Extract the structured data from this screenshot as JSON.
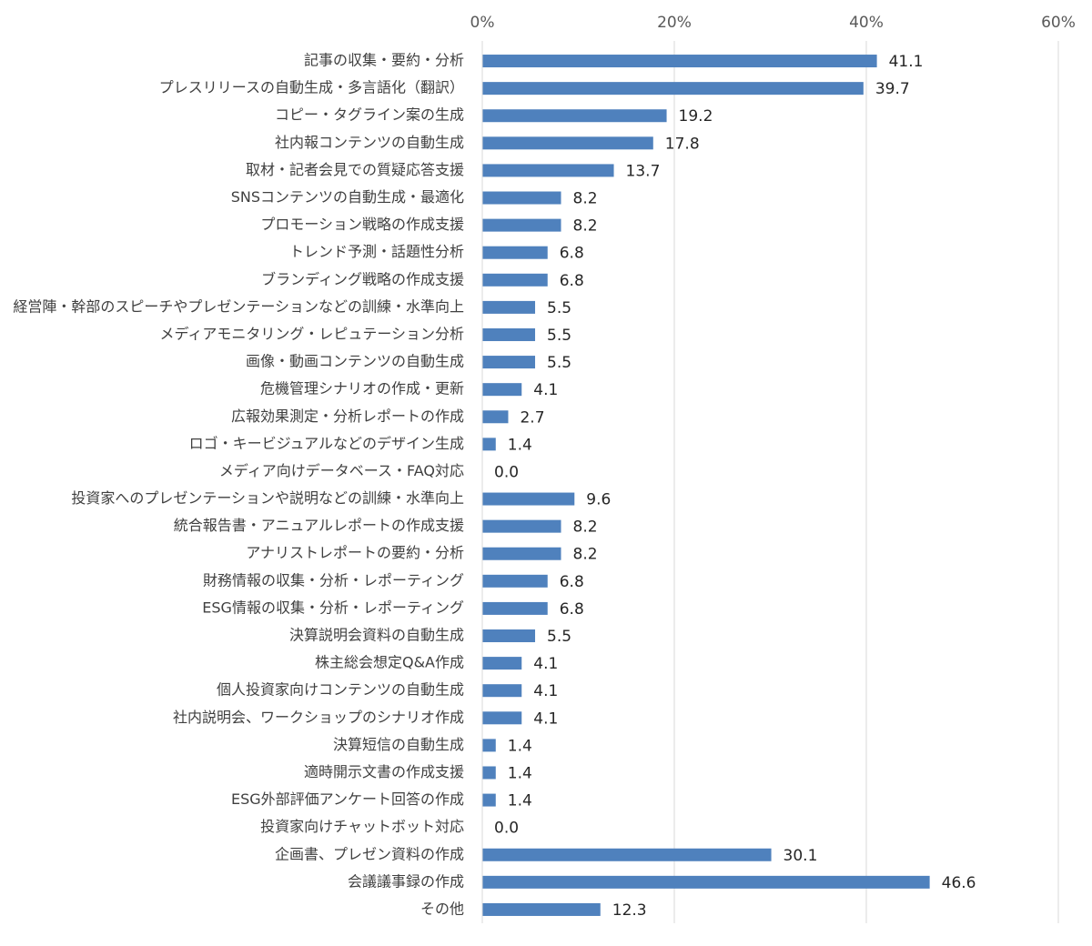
{
  "chart_data": {
    "type": "bar",
    "orientation": "horizontal",
    "color": "#4f81bd",
    "grid": true,
    "categories": [
      "記事の収集・要約・分析",
      "プレスリリースの自動生成・多言語化（翻訳）",
      "コピー・タグライン案の生成",
      "社内報コンテンツの自動生成",
      "取材・記者会見での質疑応答支援",
      "SNSコンテンツの自動生成・最適化",
      "プロモーション戦略の作成支援",
      "トレンド予測・話題性分析",
      "ブランディング戦略の作成支援",
      "経営陣・幹部のスピーチやプレゼンテーションなどの訓練・水準向上",
      "メディアモニタリング・レピュテーション分析",
      "画像・動画コンテンツの自動生成",
      "危機管理シナリオの作成・更新",
      "広報効果測定・分析レポートの作成",
      "ロゴ・キービジュアルなどのデザイン生成",
      "メディア向けデータベース・FAQ対応",
      "投資家へのプレゼンテーションや説明などの訓練・水準向上",
      "統合報告書・アニュアルレポートの作成支援",
      "アナリストレポートの要約・分析",
      "財務情報の収集・分析・レポーティング",
      "ESG情報の収集・分析・レポーティング",
      "決算説明会資料の自動生成",
      "株主総会想定Q&A作成",
      "個人投資家向けコンテンツの自動生成",
      "社内説明会、ワークショップのシナリオ作成",
      "決算短信の自動生成",
      "適時開示文書の作成支援",
      "ESG外部評価アンケート回答の作成",
      "投資家向けチャットボット対応",
      "企画書、プレゼン資料の作成",
      "会議議事録の作成",
      "その他"
    ],
    "values": [
      41.1,
      39.7,
      19.2,
      17.8,
      13.7,
      8.2,
      8.2,
      6.8,
      6.8,
      5.5,
      5.5,
      5.5,
      4.1,
      2.7,
      1.4,
      0.0,
      9.6,
      8.2,
      8.2,
      6.8,
      6.8,
      5.5,
      4.1,
      4.1,
      4.1,
      1.4,
      1.4,
      1.4,
      0.0,
      30.1,
      46.6,
      12.3
    ],
    "value_labels": [
      "41.1",
      "39.7",
      "19.2",
      "17.8",
      "13.7",
      "8.2",
      "8.2",
      "6.8",
      "6.8",
      "5.5",
      "5.5",
      "5.5",
      "4.1",
      "2.7",
      "1.4",
      "0.0",
      "9.6",
      "8.2",
      "8.2",
      "6.8",
      "6.8",
      "5.5",
      "4.1",
      "4.1",
      "4.1",
      "1.4",
      "1.4",
      "1.4",
      "0.0",
      "30.1",
      "46.6",
      "12.3"
    ],
    "xlim": [
      0,
      60
    ],
    "xticks": [
      {
        "value": 0,
        "label": "0%"
      },
      {
        "value": 20,
        "label": "20%"
      },
      {
        "value": 40,
        "label": "40%"
      },
      {
        "value": 60,
        "label": "60%"
      }
    ]
  }
}
